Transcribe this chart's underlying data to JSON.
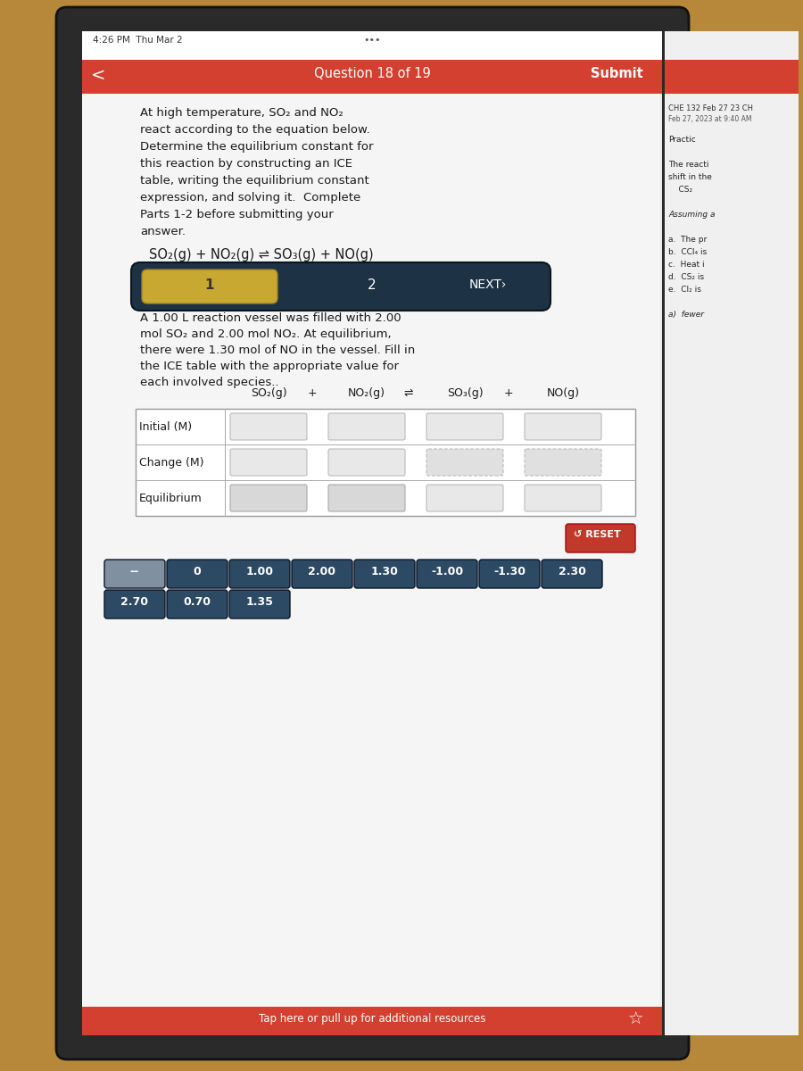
{
  "bg_outer": "#b8883a",
  "header_red": "#d44030",
  "header_text": "Question 18 of 19",
  "submit_text": "Submit",
  "time_text": "4:26 PM  Thu Mar 2",
  "side_panel_title": "CHE 132 Feb 27 23 CH",
  "side_panel_date": "Feb 27, 2023 at 9:40 AM",
  "problem_text_lines": [
    "At high temperature, SO₂ and NO₂",
    "react according to the equation below.",
    "Determine the equilibrium constant for",
    "this reaction by constructing an ICE",
    "table, writing the equilibrium constant",
    "expression, and solving it.  Complete",
    "Parts 1-2 before submitting your",
    "answer."
  ],
  "equation": "SO₂(g) + NO₂(g) ⇌ SO₃(g) + NO(g)",
  "vessel_text_lines": [
    "A 1.00 L reaction vessel was filled with 2.00",
    "mol SO₂ and 2.00 mol NO₂. At equilibrium,",
    "there were 1.30 mol of NO in the vessel. Fill in",
    "the ICE table with the appropriate value for",
    "each involved species.."
  ],
  "table_header": [
    "SO₂(g)",
    "+",
    "NO₂(g)",
    "⇌",
    "SO₃(g)",
    "+",
    "NO(g)"
  ],
  "table_rows": [
    "Initial (M)",
    "Change (M)",
    "Equilibrium"
  ],
  "answer_buttons_row1": [
    "--",
    "0",
    "1.00",
    "2.00",
    "1.30",
    "-1.00",
    "-1.30",
    "2.30"
  ],
  "answer_buttons_row2": [
    "2.70",
    "0.70",
    "1.35"
  ],
  "btn_color_dark": "#2d4a65",
  "btn_color_gray": "#8090a0",
  "btn_color_reset": "#c0392b",
  "footer_text": "Tap here or pull up for additional resources",
  "footer_bg": "#d44030",
  "right_content": [
    [
      "Practic",
      false
    ],
    [
      "",
      false
    ],
    [
      "The reacti",
      false
    ],
    [
      "shift in the",
      false
    ],
    [
      "    CS₂",
      false
    ],
    [
      "",
      false
    ],
    [
      "Assuming a",
      true
    ],
    [
      "",
      false
    ],
    [
      "a.  The pr",
      false
    ],
    [
      "b.  CCl₄ is",
      false
    ],
    [
      "c.  Heat i",
      false
    ],
    [
      "d.  CS₂ is",
      false
    ],
    [
      "e.  Cl₂ is",
      false
    ],
    [
      "",
      false
    ],
    [
      "a)  fewer",
      true
    ]
  ]
}
